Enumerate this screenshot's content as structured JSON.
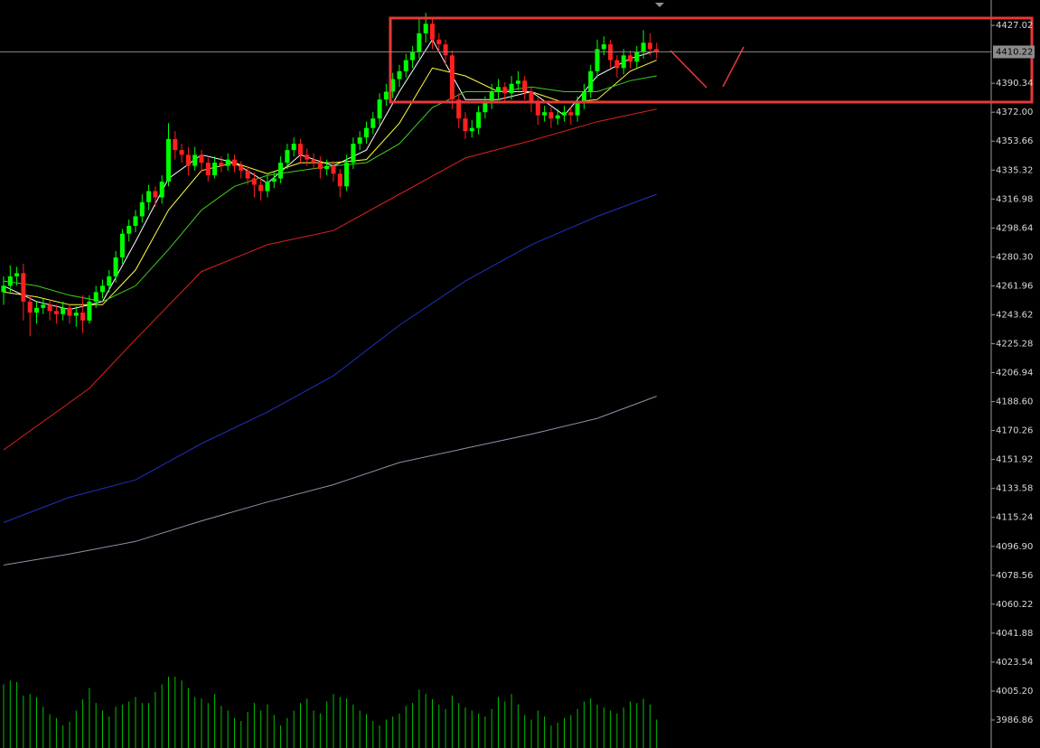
{
  "chart_data": {
    "type": "candlestick",
    "ylim": [
      3969.1,
      4443.1
    ],
    "yticks": [
      4427.02,
      4390.34,
      {
        "value": 4372.0,
        "label": "4372.00"
      },
      4353.66,
      4335.32,
      4316.98,
      4298.64,
      {
        "value": 4280.3,
        "label": "4280.30"
      },
      4261.96,
      4243.62,
      4225.28,
      4206.94,
      {
        "value": 4188.6,
        "label": "4188.60"
      },
      4170.26,
      4151.92,
      4133.58,
      4115.24,
      {
        "value": 4096.9,
        "label": "4096.90"
      },
      4078.56,
      4060.22,
      4041.88,
      4023.54,
      {
        "value": 4005.2,
        "label": "4005.20"
      },
      3986.86
    ],
    "current_price": 4410.22,
    "up_color": "#00ff00",
    "down_color": "#ff2020",
    "volume_color": "#00c000",
    "candles": [
      [
        4258,
        4268,
        4250,
        4262
      ],
      [
        4262,
        4275,
        4258,
        4268
      ],
      [
        4268,
        4274,
        4262,
        4270
      ],
      [
        4270,
        4276,
        4240,
        4252
      ],
      [
        4252,
        4256,
        4230,
        4245
      ],
      [
        4245,
        4252,
        4238,
        4248
      ],
      [
        4248,
        4254,
        4244,
        4250
      ],
      [
        4250,
        4253,
        4240,
        4246
      ],
      [
        4246,
        4250,
        4238,
        4244
      ],
      [
        4244,
        4252,
        4240,
        4248
      ],
      [
        4248,
        4250,
        4238,
        4243
      ],
      [
        4243,
        4249,
        4236,
        4245
      ],
      [
        4245,
        4256,
        4232,
        4240
      ],
      [
        4240,
        4256,
        4238,
        4252
      ],
      [
        4252,
        4262,
        4248,
        4258
      ],
      [
        4258,
        4266,
        4254,
        4262
      ],
      [
        4262,
        4272,
        4258,
        4268
      ],
      [
        4268,
        4284,
        4264,
        4280
      ],
      [
        4280,
        4298,
        4276,
        4295
      ],
      [
        4295,
        4304,
        4290,
        4300
      ],
      [
        4300,
        4310,
        4296,
        4306
      ],
      [
        4306,
        4320,
        4302,
        4315
      ],
      [
        4315,
        4326,
        4310,
        4322
      ],
      [
        4322,
        4325,
        4312,
        4318
      ],
      [
        4318,
        4332,
        4314,
        4328
      ],
      [
        4328,
        4365,
        4325,
        4355
      ],
      [
        4355,
        4360,
        4342,
        4348
      ],
      [
        4348,
        4352,
        4340,
        4345
      ],
      [
        4345,
        4350,
        4332,
        4338
      ],
      [
        4338,
        4350,
        4335,
        4345
      ],
      [
        4345,
        4348,
        4334,
        4340
      ],
      [
        4340,
        4343,
        4328,
        4332
      ],
      [
        4332,
        4344,
        4330,
        4340
      ],
      [
        4340,
        4344,
        4334,
        4338
      ],
      [
        4338,
        4346,
        4335,
        4342
      ],
      [
        4342,
        4345,
        4334,
        4338
      ],
      [
        4338,
        4341,
        4330,
        4335
      ],
      [
        4335,
        4338,
        4326,
        4330
      ],
      [
        4330,
        4334,
        4318,
        4326
      ],
      [
        4326,
        4330,
        4316,
        4322
      ],
      [
        4322,
        4332,
        4318,
        4328
      ],
      [
        4328,
        4334,
        4324,
        4330
      ],
      [
        4330,
        4344,
        4327,
        4340
      ],
      [
        4340,
        4352,
        4336,
        4348
      ],
      [
        4348,
        4356,
        4344,
        4352
      ],
      [
        4352,
        4355,
        4340,
        4345
      ],
      [
        4345,
        4349,
        4338,
        4342
      ],
      [
        4342,
        4346,
        4336,
        4340
      ],
      [
        4340,
        4344,
        4330,
        4336
      ],
      [
        4336,
        4342,
        4332,
        4338
      ],
      [
        4338,
        4341,
        4328,
        4333
      ],
      [
        4333,
        4336,
        4318,
        4325
      ],
      [
        4325,
        4345,
        4322,
        4340
      ],
      [
        4340,
        4356,
        4336,
        4352
      ],
      [
        4352,
        4360,
        4348,
        4356
      ],
      [
        4356,
        4366,
        4352,
        4362
      ],
      [
        4362,
        4372,
        4358,
        4368
      ],
      [
        4368,
        4384,
        4364,
        4380
      ],
      [
        4380,
        4390,
        4376,
        4385
      ],
      [
        4385,
        4397,
        4381,
        4393
      ],
      [
        4393,
        4402,
        4388,
        4398
      ],
      [
        4398,
        4409,
        4394,
        4405
      ],
      [
        4405,
        4414,
        4400,
        4410
      ],
      [
        4410,
        4432,
        4406,
        4422
      ],
      [
        4422,
        4435,
        4416,
        4428
      ],
      [
        4428,
        4432,
        4412,
        4418
      ],
      [
        4418,
        4422,
        4410,
        4415
      ],
      [
        4415,
        4418,
        4402,
        4408
      ],
      [
        4408,
        4411,
        4374,
        4380
      ],
      [
        4380,
        4384,
        4362,
        4368
      ],
      [
        4368,
        4372,
        4355,
        4360
      ],
      [
        4360,
        4367,
        4356,
        4362
      ],
      [
        4362,
        4376,
        4358,
        4372
      ],
      [
        4372,
        4382,
        4368,
        4378
      ],
      [
        4378,
        4390,
        4374,
        4385
      ],
      [
        4385,
        4393,
        4380,
        4388
      ],
      [
        4388,
        4391,
        4378,
        4384
      ],
      [
        4384,
        4395,
        4380,
        4390
      ],
      [
        4390,
        4398,
        4386,
        4392
      ],
      [
        4392,
        4395,
        4380,
        4385
      ],
      [
        4385,
        4388,
        4372,
        4378
      ],
      [
        4378,
        4381,
        4364,
        4370
      ],
      [
        4370,
        4376,
        4366,
        4372
      ],
      [
        4372,
        4375,
        4362,
        4368
      ],
      [
        4368,
        4374,
        4364,
        4370
      ],
      [
        4370,
        4376,
        4366,
        4372
      ],
      [
        4372,
        4375,
        4364,
        4370
      ],
      [
        4370,
        4382,
        4366,
        4378
      ],
      [
        4378,
        4390,
        4374,
        4385
      ],
      [
        4385,
        4402,
        4381,
        4398
      ],
      [
        4398,
        4418,
        4394,
        4412
      ],
      [
        4412,
        4420,
        4408,
        4415
      ],
      [
        4415,
        4418,
        4400,
        4405
      ],
      [
        4405,
        4408,
        4394,
        4400
      ],
      [
        4400,
        4412,
        4396,
        4408
      ],
      [
        4408,
        4411,
        4400,
        4404
      ],
      [
        4404,
        4414,
        4400,
        4410
      ],
      [
        4410,
        4424,
        4406,
        4416
      ],
      [
        4416,
        4422,
        4408,
        4412
      ],
      [
        4412,
        4416,
        4406,
        4410.22
      ]
    ],
    "volume_lim": [
      0,
      100
    ],
    "volumes": [
      85,
      90,
      88,
      70,
      72,
      68,
      55,
      45,
      40,
      30,
      35,
      50,
      65,
      80,
      60,
      50,
      42,
      55,
      58,
      62,
      68,
      60,
      60,
      75,
      85,
      95,
      95,
      90,
      80,
      68,
      66,
      60,
      72,
      56,
      50,
      40,
      36,
      48,
      60,
      50,
      58,
      44,
      30,
      40,
      50,
      60,
      66,
      50,
      46,
      62,
      72,
      68,
      66,
      58,
      50,
      45,
      36,
      30,
      38,
      42,
      46,
      56,
      60,
      78,
      72,
      65,
      58,
      52,
      70,
      60,
      54,
      50,
      46,
      42,
      52,
      68,
      62,
      72,
      58,
      44,
      38,
      50,
      42,
      30,
      34,
      40,
      44,
      52,
      62,
      66,
      58,
      54,
      50,
      46,
      54,
      62,
      60,
      66,
      58,
      38
    ],
    "moving_averages": [
      {
        "color": "#ffffff",
        "x": [
          0,
          5,
          10,
          15,
          20,
          25,
          30,
          35,
          40,
          45,
          50,
          55,
          60,
          65,
          70,
          75,
          80,
          85,
          90,
          95,
          99
        ],
        "values": [
          4262,
          4252,
          4247,
          4252,
          4290,
          4330,
          4345,
          4340,
          4327,
          4345,
          4338,
          4348,
          4385,
          4418,
          4380,
          4380,
          4385,
          4370,
          4395,
          4406,
          4411
        ]
      },
      {
        "color": "#ffff40",
        "x": [
          0,
          5,
          10,
          15,
          20,
          25,
          30,
          35,
          40,
          45,
          50,
          55,
          60,
          65,
          70,
          75,
          80,
          85,
          90,
          95,
          99
        ],
        "values": [
          4258,
          4255,
          4250,
          4250,
          4272,
          4310,
          4335,
          4340,
          4333,
          4340,
          4340,
          4342,
          4365,
          4400,
          4395,
          4385,
          4385,
          4378,
          4380,
          4398,
          4405
        ]
      },
      {
        "color": "#40d020",
        "x": [
          0,
          5,
          10,
          15,
          20,
          25,
          30,
          35,
          40,
          45,
          50,
          55,
          60,
          65,
          70,
          75,
          80,
          85,
          90,
          95,
          99
        ],
        "values": [
          4265,
          4262,
          4256,
          4252,
          4262,
          4285,
          4310,
          4325,
          4332,
          4335,
          4338,
          4340,
          4352,
          4375,
          4385,
          4385,
          4388,
          4385,
          4385,
          4392,
          4395
        ]
      },
      {
        "color": "#e02020",
        "x": [
          0,
          13,
          20,
          30,
          40,
          50,
          60,
          70,
          80,
          90,
          99
        ],
        "values": [
          4158,
          4197,
          4228,
          4271,
          4288,
          4297,
          4320,
          4343,
          4354,
          4366,
          4374
        ]
      },
      {
        "color": "#2030c0",
        "x": [
          0,
          10,
          20,
          30,
          40,
          50,
          60,
          70,
          80,
          90,
          99
        ],
        "values": [
          4112,
          4128,
          4139,
          4162,
          4182,
          4205,
          4237,
          4265,
          4288,
          4306,
          4320
        ]
      },
      {
        "color": "#9090a8",
        "x": [
          0,
          10,
          20,
          30,
          40,
          50,
          60,
          70,
          80,
          90,
          99
        ],
        "values": [
          4085,
          4092,
          4100,
          4113,
          4125,
          4136,
          4150,
          4159,
          4168,
          4178,
          4192
        ]
      }
    ]
  }
}
